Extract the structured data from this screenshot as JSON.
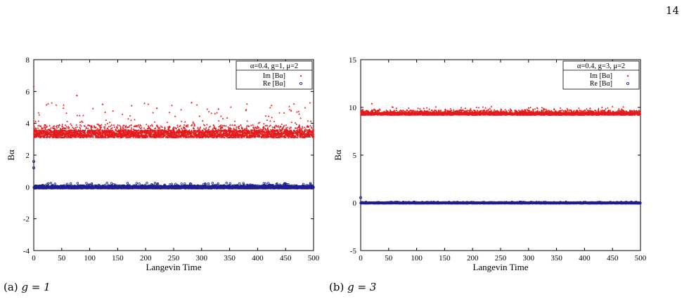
{
  "page_number": "14",
  "captions": [
    {
      "prefix": "(a)",
      "math": "g = 1"
    },
    {
      "prefix": "(b)",
      "math": "g = 3"
    }
  ],
  "chart_data": [
    {
      "type": "scatter",
      "title": "",
      "legend_title": "α=0.4, g=1, μ=2",
      "legend_position": "top-right",
      "xlabel": "Langevin Time",
      "ylabel": "Bα",
      "xlim": [
        0,
        500
      ],
      "ylim": [
        -4,
        8
      ],
      "xticks": [
        "0",
        "50",
        "100",
        "150",
        "200",
        "250",
        "300",
        "350",
        "400",
        "450",
        "500"
      ],
      "yticks": [
        "-4",
        "-2",
        "0",
        "2",
        "4",
        "6",
        "8"
      ],
      "grid": false,
      "series": [
        {
          "name": "Im [Bα]",
          "marker": "triangle",
          "color": "#e41a1c",
          "base": 3.1,
          "band_top": 3.9,
          "spike_max": 5.3,
          "spikes": [
            [
              0,
              6.35
            ],
            [
              77,
              5.75
            ],
            [
              123,
              5.2
            ],
            [
              282,
              5.3
            ],
            [
              460,
              4.8
            ],
            [
              330,
              4.9
            ],
            [
              220,
              4.95
            ]
          ]
        },
        {
          "name": "Re [Bα]",
          "marker": "circle",
          "color": "#1f1f8f",
          "base": -0.08,
          "band_top": 0.08,
          "spike_max": 0.25,
          "spikes": [
            [
              0,
              1.6
            ],
            [
              0,
              1.2
            ],
            [
              280,
              0.2
            ]
          ]
        }
      ]
    },
    {
      "type": "scatter",
      "title": "",
      "legend_title": "α=0.4, g=3, μ=2",
      "legend_position": "top-right",
      "xlabel": "Langevin Time",
      "ylabel": "Bα",
      "xlim": [
        0,
        500
      ],
      "ylim": [
        -5,
        15
      ],
      "xticks": [
        "0",
        "50",
        "100",
        "150",
        "200",
        "250",
        "300",
        "350",
        "400",
        "450",
        "500"
      ],
      "yticks": [
        "-5",
        "0",
        "5",
        "10",
        "15"
      ],
      "grid": false,
      "series": [
        {
          "name": "Im [Bα]",
          "marker": "triangle",
          "color": "#e41a1c",
          "base": 9.2,
          "band_top": 9.7,
          "spike_max": 10.1,
          "spikes": [
            [
              20,
              10.4
            ],
            [
              410,
              9.9
            ],
            [
              300,
              9.95
            ]
          ]
        },
        {
          "name": "Re [Bα]",
          "marker": "circle",
          "color": "#1f1f8f",
          "base": -0.04,
          "band_top": 0.04,
          "spike_max": 0.1,
          "spikes": [
            [
              0,
              0.55
            ]
          ]
        }
      ]
    }
  ]
}
